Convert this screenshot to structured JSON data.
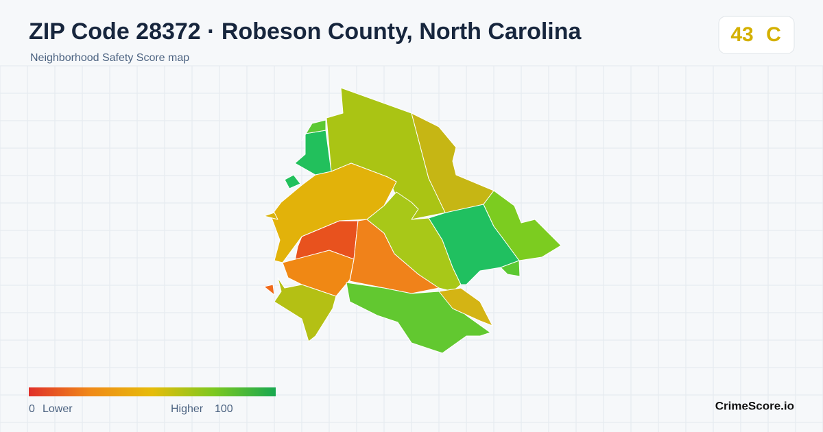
{
  "header": {
    "title": "ZIP Code 28372 · Robeson County, North Carolina",
    "subtitle": "Neighborhood Safety Score map"
  },
  "score": {
    "value": "43",
    "grade": "C"
  },
  "legend": {
    "min": "0",
    "low_label": "Lower",
    "high_label": "Higher",
    "max": "100"
  },
  "brand": "CrimeScore.io"
}
